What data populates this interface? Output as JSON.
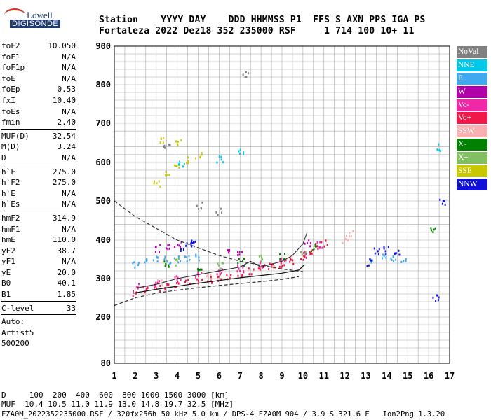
{
  "logo": {
    "line1": "Lowell",
    "line2": "DIGISONDE"
  },
  "header": {
    "line1": "Station    YYYY DAY    DDD HHMMSS P1  FFS S AXN PPS IGA PS",
    "line2": "Fortaleza 2022 Dez18 352 235000 RSF     1 714 100 10+ 11"
  },
  "params": {
    "group1": [
      {
        "name": "foF2",
        "value": "10.050"
      },
      {
        "name": "foF1",
        "value": "N/A"
      },
      {
        "name": "foF1p",
        "value": "N/A"
      },
      {
        "name": "foE",
        "value": "N/A"
      },
      {
        "name": "foEp",
        "value": "0.53"
      },
      {
        "name": "fxI",
        "value": "10.40"
      },
      {
        "name": "foEs",
        "value": "N/A"
      },
      {
        "name": "fmin",
        "value": "2.40"
      }
    ],
    "group2": [
      {
        "name": "MUF(D)",
        "value": "32.54"
      },
      {
        "name": "M(D)",
        "value": "3.24"
      },
      {
        "name": "D",
        "value": "N/A"
      }
    ],
    "group3": [
      {
        "name": "h`F",
        "value": "275.0"
      },
      {
        "name": "h`F2",
        "value": "275.0"
      },
      {
        "name": "h`E",
        "value": "N/A"
      },
      {
        "name": "h`Es",
        "value": "N/A"
      }
    ],
    "group4": [
      {
        "name": "hmF2",
        "value": "314.9"
      },
      {
        "name": "hmF1",
        "value": "N/A"
      },
      {
        "name": "hmE",
        "value": "110.0"
      },
      {
        "name": "yF2",
        "value": "38.7"
      },
      {
        "name": "yF1",
        "value": "N/A"
      },
      {
        "name": "yE",
        "value": "20.0"
      },
      {
        "name": "B0",
        "value": "40.1"
      },
      {
        "name": "B1",
        "value": "1.85"
      }
    ],
    "group5": [
      {
        "name": "C-level",
        "value": "33"
      }
    ],
    "auto": [
      "Auto:",
      "Artist5",
      "500200"
    ]
  },
  "bottom": {
    "d_line": "D     100  200  400  600  800 1000 1500 3000 [km]",
    "muf_line": "MUF  10.4 10.5 11.0 11.9 13.0 14.8 19.7 32.5 [MHz]",
    "file_line": "FZA0M_2022352235000.RSF / 320fx256h 50 kHz 5.0 km / DPS-4 FZA0M 904 / 3.9 S 321.6 E   Ion2Png 1.3.20"
  },
  "legend": [
    {
      "label": "NoVal",
      "color": "#808080"
    },
    {
      "label": "NNE",
      "color": "#00c8e8"
    },
    {
      "label": "E",
      "color": "#40a8f0"
    },
    {
      "label": "W",
      "color": "#b000a8"
    },
    {
      "label": "Vo-",
      "color": "#f028a8"
    },
    {
      "label": "Vo+",
      "color": "#f01848"
    },
    {
      "label": "SSW",
      "color": "#f8b0b0"
    },
    {
      "label": "X-",
      "color": "#008000"
    },
    {
      "label": "X+",
      "color": "#80c060"
    },
    {
      "label": "SSE",
      "color": "#c8c800"
    },
    {
      "label": "NNW",
      "color": "#1010d8"
    }
  ],
  "chart_data": {
    "type": "scatter",
    "x_ticks": [
      1,
      2,
      3,
      4,
      5,
      6,
      7,
      8,
      9,
      10,
      11,
      12,
      13,
      14,
      15,
      16,
      17
    ],
    "y_ticks": [
      80,
      200,
      300,
      400,
      500,
      600,
      700,
      800,
      900
    ],
    "xlim": [
      1,
      17
    ],
    "ylim": [
      80,
      900
    ],
    "y_scale": "nonlinear (ionogram virtual height)",
    "grid": true,
    "legend_position": "right",
    "series": [
      {
        "name": "Vo+",
        "color": "#f01848",
        "points": [
          [
            2.0,
            265
          ],
          [
            2.5,
            272
          ],
          [
            3.0,
            278
          ],
          [
            3.5,
            283
          ],
          [
            4.0,
            288
          ],
          [
            4.5,
            292
          ],
          [
            5.0,
            296
          ],
          [
            5.5,
            300
          ],
          [
            6.0,
            305
          ],
          [
            6.5,
            310
          ],
          [
            7.0,
            315
          ],
          [
            7.5,
            320
          ],
          [
            8.0,
            326
          ],
          [
            8.5,
            332
          ],
          [
            9.0,
            340
          ],
          [
            9.5,
            348
          ],
          [
            10.0,
            360
          ],
          [
            10.3,
            375
          ],
          [
            10.6,
            385
          ],
          [
            11.0,
            395
          ]
        ]
      },
      {
        "name": "Vo-",
        "color": "#f028a8",
        "points": [
          [
            2.2,
            280
          ],
          [
            3.0,
            290
          ],
          [
            4.0,
            300
          ],
          [
            5.0,
            310
          ],
          [
            6.0,
            318
          ],
          [
            7.0,
            330
          ],
          [
            8.0,
            340
          ],
          [
            9.0,
            352
          ],
          [
            10.0,
            370
          ],
          [
            10.8,
            390
          ]
        ]
      },
      {
        "name": "E",
        "color": "#40a8f0",
        "points": [
          [
            2.0,
            340
          ],
          [
            2.5,
            345
          ],
          [
            3.0,
            350
          ],
          [
            3.5,
            350
          ],
          [
            4.0,
            352
          ],
          [
            4.5,
            355
          ],
          [
            5.0,
            358
          ],
          [
            13.3,
            350
          ],
          [
            13.8,
            360
          ],
          [
            14.3,
            355
          ],
          [
            14.8,
            345
          ]
        ]
      },
      {
        "name": "NNW",
        "color": "#1010d8",
        "points": [
          [
            4.3,
            380
          ],
          [
            4.5,
            392
          ],
          [
            4.8,
            400
          ],
          [
            13.2,
            345
          ],
          [
            13.5,
            372
          ],
          [
            14.0,
            375
          ],
          [
            14.5,
            368
          ],
          [
            16.3,
            250
          ],
          [
            16.6,
            500
          ]
        ]
      },
      {
        "name": "W",
        "color": "#b000a8",
        "points": [
          [
            3.0,
            380
          ],
          [
            3.5,
            385
          ],
          [
            4.0,
            390
          ],
          [
            6.5,
            370
          ],
          [
            7.0,
            365
          ],
          [
            10.2,
            395
          ]
        ]
      },
      {
        "name": "X-",
        "color": "#008000",
        "points": [
          [
            3.5,
            340
          ],
          [
            5.0,
            330
          ],
          [
            7.0,
            345
          ],
          [
            9.0,
            360
          ],
          [
            10.5,
            380
          ],
          [
            16.2,
            430
          ]
        ]
      },
      {
        "name": "X+",
        "color": "#80c060",
        "points": [
          [
            4.0,
            345
          ],
          [
            6.0,
            335
          ],
          [
            8.0,
            355
          ],
          [
            10.0,
            375
          ]
        ]
      },
      {
        "name": "SSW",
        "color": "#f8b0b0",
        "points": [
          [
            3.2,
            295
          ],
          [
            5.5,
            305
          ],
          [
            8.5,
            330
          ],
          [
            12.0,
            400
          ],
          [
            12.2,
            420
          ]
        ]
      },
      {
        "name": "SSE",
        "color": "#c8c800",
        "points": [
          [
            3.0,
            545
          ],
          [
            3.5,
            570
          ],
          [
            4.0,
            590
          ],
          [
            4.5,
            610
          ],
          [
            5.0,
            620
          ],
          [
            3.3,
            660
          ],
          [
            4.0,
            650
          ]
        ]
      },
      {
        "name": "NNE",
        "color": "#00c8e8",
        "points": [
          [
            4.2,
            600
          ],
          [
            6.0,
            610
          ],
          [
            7.0,
            630
          ],
          [
            16.5,
            640
          ]
        ]
      },
      {
        "name": "NoVal",
        "color": "#808080",
        "points": [
          [
            5.0,
            490
          ],
          [
            6.0,
            475
          ],
          [
            3.5,
            640
          ],
          [
            7.2,
            830
          ]
        ]
      }
    ],
    "curves": {
      "dashed": [
        [
          1.0,
          500
        ],
        [
          2.0,
          460
        ],
        [
          3.0,
          430
        ],
        [
          4.0,
          400
        ],
        [
          5.0,
          380
        ],
        [
          6.0,
          360
        ],
        [
          7.0,
          345
        ],
        [
          8.0,
          335
        ],
        [
          9.0,
          325
        ],
        [
          10.0,
          318
        ]
      ],
      "dashed_lower": [
        [
          1.0,
          230
        ],
        [
          2.0,
          250
        ],
        [
          3.0,
          262
        ],
        [
          4.0,
          270
        ],
        [
          5.0,
          276
        ],
        [
          6.0,
          282
        ],
        [
          7.0,
          287
        ],
        [
          8.0,
          292
        ],
        [
          9.0,
          298
        ],
        [
          9.8,
          305
        ]
      ],
      "solid": [
        [
          1.9,
          262
        ],
        [
          3.0,
          272
        ],
        [
          4.0,
          280
        ],
        [
          5.0,
          288
        ],
        [
          6.0,
          295
        ],
        [
          7.0,
          302
        ],
        [
          8.0,
          308
        ],
        [
          9.0,
          314
        ],
        [
          9.8,
          322
        ],
        [
          10.05,
          335
        ]
      ],
      "trace": [
        [
          2.0,
          275
        ],
        [
          3.0,
          285
        ],
        [
          4.0,
          300
        ],
        [
          5.0,
          310
        ],
        [
          6.0,
          320
        ],
        [
          7.0,
          330
        ],
        [
          7.5,
          345
        ],
        [
          8.0,
          330
        ],
        [
          9.0,
          345
        ],
        [
          9.5,
          360
        ],
        [
          10.0,
          390
        ],
        [
          10.2,
          420
        ]
      ]
    }
  }
}
